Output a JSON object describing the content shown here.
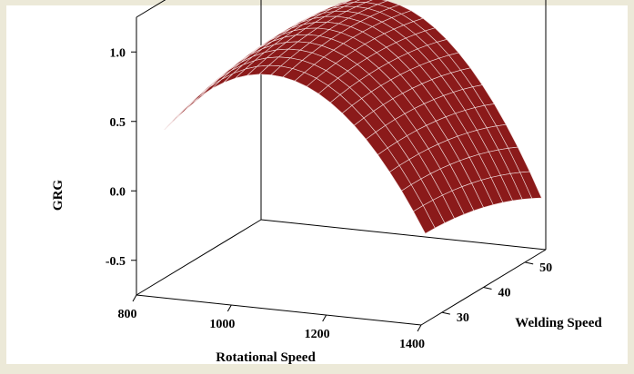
{
  "chart_data": {
    "type": "surface",
    "title": "",
    "x_axis": {
      "label": "Rotational Speed",
      "ticks": [
        800,
        1000,
        1200,
        1400
      ],
      "range": [
        800,
        1400
      ]
    },
    "y_axis": {
      "label": "Welding Speed",
      "ticks": [
        30,
        40,
        50
      ],
      "range": [
        25,
        55
      ]
    },
    "z_axis": {
      "label": "GRG",
      "ticks": [
        "-0.5",
        "0.0",
        "0.5",
        "1.0"
      ],
      "range": [
        -0.75,
        1.25
      ]
    },
    "surface": {
      "x_range": [
        850,
        1400
      ],
      "y_range": [
        26,
        54
      ],
      "grid_x": 22,
      "grid_y": 12,
      "corner_values": {
        "x850_y26": 0.5,
        "x850_y54": 0.58,
        "x1400_y26": -0.05,
        "x1400_y54": -0.3
      },
      "peak_value": 0.95
    },
    "grid": false,
    "colors": {
      "background": "#ece9d8",
      "plot_area": "#ffffff",
      "surface_fill": "#8b1a1a",
      "surface_mesh": "#f2dede"
    }
  }
}
